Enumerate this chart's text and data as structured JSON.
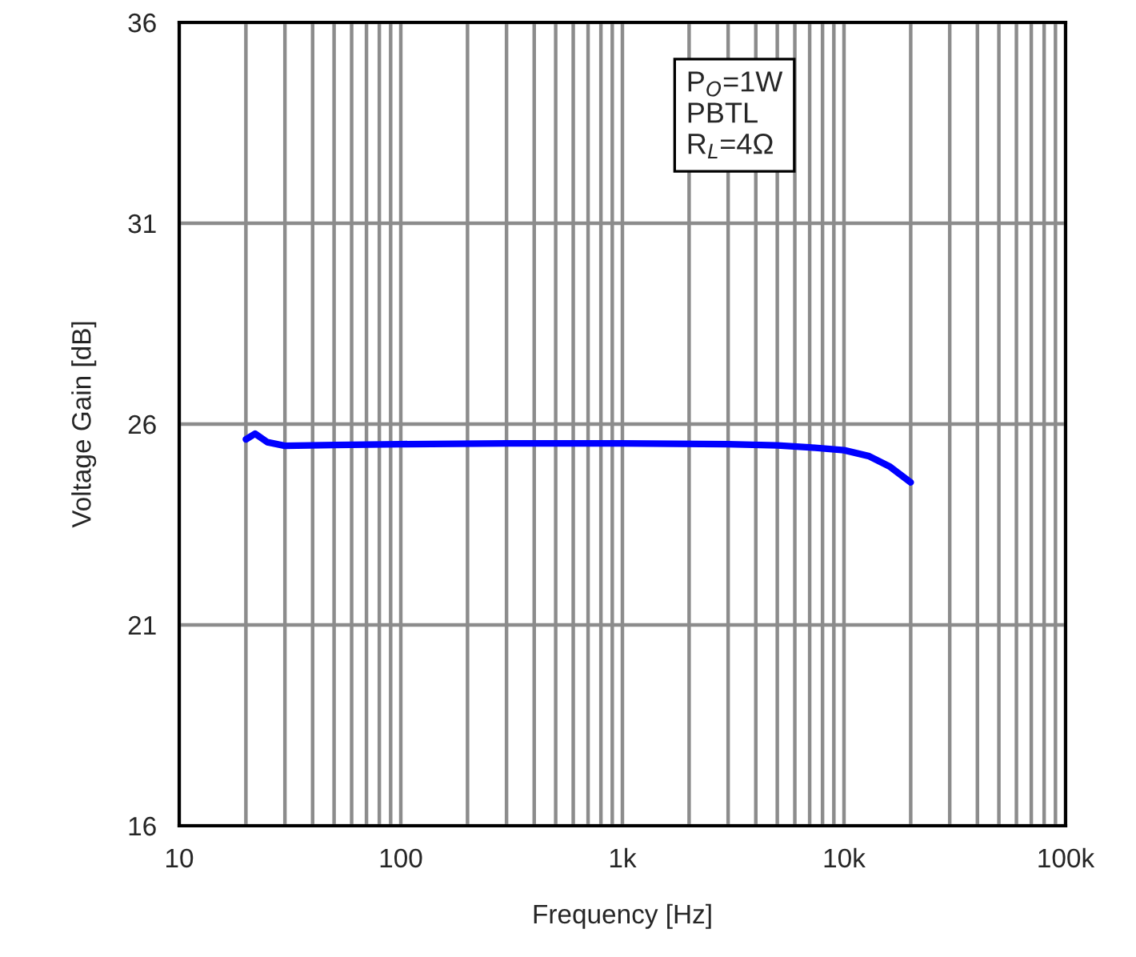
{
  "chart_data": {
    "type": "line",
    "xlabel": "Frequency [Hz]",
    "ylabel": "Voltage Gain [dB]",
    "log": "x",
    "xlim": [
      10,
      100000
    ],
    "xticks": [
      10,
      100,
      {
        "value": 1000,
        "label": "1k"
      },
      {
        "value": 10000,
        "label": "10k"
      },
      {
        "value": 100000,
        "label": "100k"
      }
    ],
    "ylim": [
      16,
      36
    ],
    "yticks": [
      16,
      21,
      26,
      31,
      36
    ],
    "grid": true,
    "marker": "none",
    "line_style": "solid",
    "annotations": [
      "P$_{O}$=1W",
      "PBTL",
      "R$_{L}$=4Ω"
    ],
    "series": [
      {
        "color": "#0000ff",
        "x": [
          20,
          22,
          25,
          30,
          50,
          100,
          300,
          1000,
          3000,
          5000,
          7000,
          10000,
          13000,
          16000,
          20000
        ],
        "values": [
          25.62,
          25.76,
          25.55,
          25.46,
          25.48,
          25.5,
          25.52,
          25.52,
          25.5,
          25.47,
          25.42,
          25.35,
          25.2,
          24.95,
          24.55
        ]
      }
    ]
  }
}
